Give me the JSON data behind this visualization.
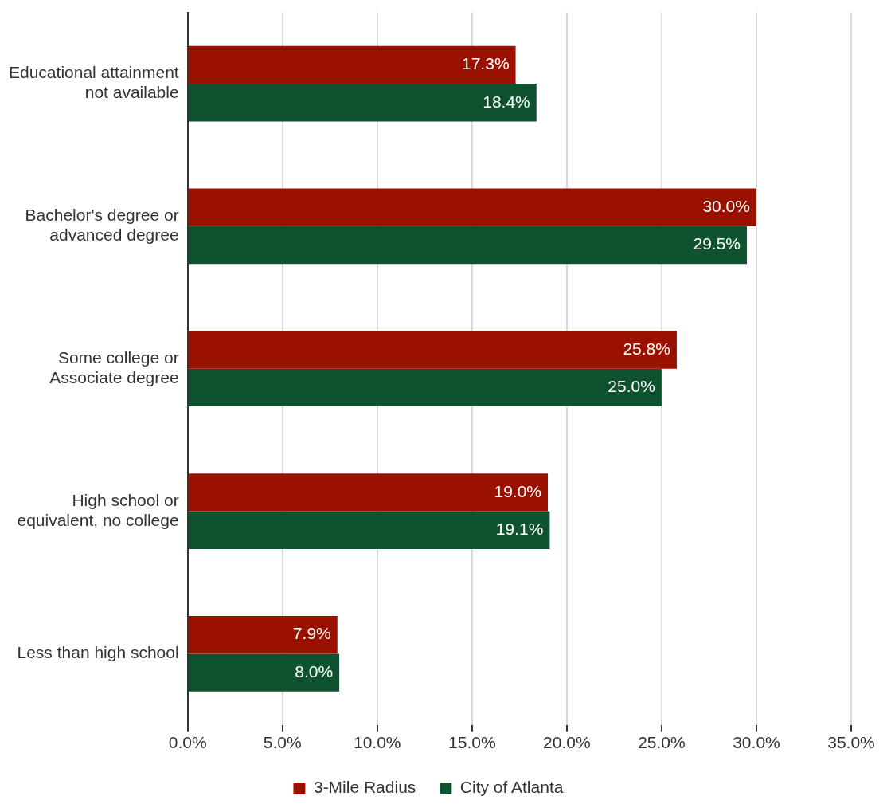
{
  "chart_data": {
    "type": "bar",
    "orientation": "horizontal",
    "categories": [
      "Educational attainment not available",
      "Bachelor's degree or advanced degree",
      "Some college or Associate degree",
      "High school or equivalent, no college",
      "Less than high school"
    ],
    "series": [
      {
        "name": "3-Mile Radius",
        "color": "#9b1100",
        "values": [
          17.3,
          30.0,
          25.8,
          19.0,
          7.9
        ],
        "value_labels": [
          "17.3%",
          "30.0%",
          "25.8%",
          "19.0%",
          "7.9%"
        ]
      },
      {
        "name": "City of Atlanta",
        "color": "#0f5230",
        "values": [
          18.4,
          29.5,
          25.0,
          19.1,
          8.0
        ],
        "value_labels": [
          "18.4%",
          "29.5%",
          "25.0%",
          "19.1%",
          "8.0%"
        ]
      }
    ],
    "xlim": [
      0,
      35
    ],
    "xticks": [
      {
        "value": 0,
        "label": "0.0%"
      },
      {
        "value": 5,
        "label": "5.0%"
      },
      {
        "value": 10,
        "label": "10.0%"
      },
      {
        "value": 15,
        "label": "15.0%"
      },
      {
        "value": 20,
        "label": "20.0%"
      },
      {
        "value": 25,
        "label": "25.0%"
      },
      {
        "value": 30,
        "label": "30.0%"
      },
      {
        "value": 35,
        "label": "35.0%"
      }
    ],
    "grid": "x",
    "legend": "bottom"
  }
}
